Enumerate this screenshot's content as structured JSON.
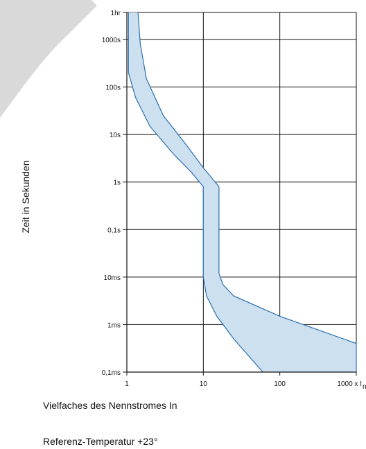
{
  "chart_data": {
    "type": "area",
    "xscale": "log",
    "yscale": "log",
    "grid": true,
    "xlim": [
      1,
      1000
    ],
    "ylim": [
      0.0001,
      3600
    ],
    "x_ticks": [
      {
        "value": 1,
        "label": "1"
      },
      {
        "value": 10,
        "label": "10"
      },
      {
        "value": 100,
        "label": "100"
      },
      {
        "value": 1000,
        "label": "1000 x I"
      }
    ],
    "x_unit_subscript": "n",
    "y_ticks": [
      {
        "value": 0.0001,
        "label": "0,1ms"
      },
      {
        "value": 0.001,
        "label": "1ms"
      },
      {
        "value": 0.01,
        "label": "10ms"
      },
      {
        "value": 0.1,
        "label": "0,1s"
      },
      {
        "value": 1,
        "label": "1s"
      },
      {
        "value": 10,
        "label": "10s"
      },
      {
        "value": 100,
        "label": "100s"
      },
      {
        "value": 1000,
        "label": "1000s"
      },
      {
        "value": 3600,
        "label": "1hr"
      }
    ],
    "ylabel": "Zeit in Sekunden",
    "xlabel": "Vielfaches des Nennstromes In",
    "band_color": "#cce0ef",
    "line_color": "#2a6fb0",
    "band": {
      "lower_curve": [
        {
          "x": 1.05,
          "y": 3600
        },
        {
          "x": 1.05,
          "y": 200
        },
        {
          "x": 1.3,
          "y": 60
        },
        {
          "x": 2,
          "y": 15
        },
        {
          "x": 4,
          "y": 4
        },
        {
          "x": 7,
          "y": 1.6
        },
        {
          "x": 10,
          "y": 0.8
        },
        {
          "x": 10,
          "y": 0.01
        },
        {
          "x": 11,
          "y": 0.004
        },
        {
          "x": 15,
          "y": 0.0015
        },
        {
          "x": 25,
          "y": 0.0005
        },
        {
          "x": 60,
          "y": 0.0001
        }
      ],
      "upper_curve": [
        {
          "x": 1.4,
          "y": 3600
        },
        {
          "x": 1.5,
          "y": 800
        },
        {
          "x": 1.8,
          "y": 150
        },
        {
          "x": 3,
          "y": 25
        },
        {
          "x": 6,
          "y": 6
        },
        {
          "x": 10,
          "y": 2
        },
        {
          "x": 16,
          "y": 0.8
        },
        {
          "x": 16,
          "y": 0.012
        },
        {
          "x": 18,
          "y": 0.007
        },
        {
          "x": 25,
          "y": 0.004
        },
        {
          "x": 100,
          "y": 0.0015
        },
        {
          "x": 1000,
          "y": 0.0004
        },
        {
          "x": 1000,
          "y": 0.0001
        }
      ]
    }
  },
  "captions": {
    "note": "Referenz-Temperatur +23°"
  }
}
